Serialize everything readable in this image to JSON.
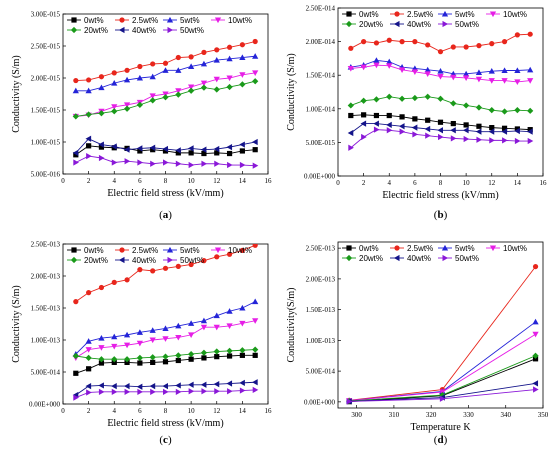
{
  "chart_data": [
    {
      "type": "line",
      "caption": "a",
      "xlabel": "Electric field stress (kV/mm)",
      "ylabel": "Conductivity (S/m)",
      "xlim": [
        0,
        16
      ],
      "xticks": [
        0,
        2,
        4,
        6,
        8,
        10,
        12,
        14,
        16
      ],
      "ylim": [
        5e-16,
        3e-15
      ],
      "yticks": [
        5e-16,
        1e-15,
        1.5e-15,
        2e-15,
        2.5e-15,
        3e-15
      ],
      "ytick_labels": [
        "5.00E-016",
        "1.00E-015",
        "1.50E-015",
        "2.00E-015",
        "2.50E-015",
        "3.00E-015"
      ],
      "legend": "top",
      "series": [
        {
          "name": "0wt%",
          "x": [
            1,
            2,
            3,
            4,
            5,
            6,
            7,
            8,
            9,
            10,
            11,
            12,
            13,
            14,
            15
          ],
          "values": [
            8e-16,
            9.4e-16,
            9.2e-16,
            9.1e-16,
            9e-16,
            8.6e-16,
            8.8e-16,
            8.6e-16,
            8.3e-16,
            8.3e-16,
            8.2e-16,
            8.3e-16,
            8.2e-16,
            8.6e-16,
            8.8e-16
          ]
        },
        {
          "name": "2.5wt%",
          "x": [
            1,
            2,
            3,
            4,
            5,
            6,
            7,
            8,
            9,
            10,
            11,
            12,
            13,
            14,
            15
          ],
          "values": [
            1.96e-15,
            1.97e-15,
            2.02e-15,
            2.08e-15,
            2.12e-15,
            2.18e-15,
            2.22e-15,
            2.23e-15,
            2.32e-15,
            2.33e-15,
            2.4e-15,
            2.44e-15,
            2.48e-15,
            2.52e-15,
            2.57e-15
          ]
        },
        {
          "name": "5wt%",
          "x": [
            1,
            2,
            3,
            4,
            5,
            6,
            7,
            8,
            9,
            10,
            11,
            12,
            13,
            14,
            15
          ],
          "values": [
            1.8e-15,
            1.8e-15,
            1.85e-15,
            1.92e-15,
            1.97e-15,
            2e-15,
            2.02e-15,
            2.12e-15,
            2.12e-15,
            2.18e-15,
            2.22e-15,
            2.28e-15,
            2.3e-15,
            2.32e-15,
            2.34e-15
          ]
        },
        {
          "name": "10wt%",
          "x": [
            1,
            2,
            3,
            4,
            5,
            6,
            7,
            8,
            9,
            10,
            11,
            12,
            13,
            14,
            15
          ],
          "values": [
            1.4e-15,
            1.42e-15,
            1.48e-15,
            1.55e-15,
            1.58e-15,
            1.62e-15,
            1.72e-15,
            1.75e-15,
            1.8e-15,
            1.86e-15,
            1.92e-15,
            1.98e-15,
            2e-15,
            2.05e-15,
            2.08e-15
          ]
        },
        {
          "name": "20wt%",
          "x": [
            1,
            2,
            3,
            4,
            5,
            6,
            7,
            8,
            9,
            10,
            11,
            12,
            13,
            14,
            15
          ],
          "values": [
            1.4e-15,
            1.43e-15,
            1.45e-15,
            1.48e-15,
            1.52e-15,
            1.58e-15,
            1.65e-15,
            1.7e-15,
            1.74e-15,
            1.8e-15,
            1.85e-15,
            1.82e-15,
            1.86e-15,
            1.9e-15,
            1.95e-15
          ]
        },
        {
          "name": "40wt%",
          "x": [
            1,
            2,
            3,
            4,
            5,
            6,
            7,
            8,
            9,
            10,
            11,
            12,
            13,
            14,
            15
          ],
          "values": [
            8.3e-16,
            1.05e-15,
            9.6e-16,
            9.3e-16,
            8.8e-16,
            9e-16,
            9.1e-16,
            8.9e-16,
            8.7e-16,
            9e-16,
            8.8e-16,
            8.9e-16,
            9.2e-16,
            9.6e-16,
            1e-15
          ]
        },
        {
          "name": "50wt%",
          "x": [
            1,
            2,
            3,
            4,
            5,
            6,
            7,
            8,
            9,
            10,
            11,
            12,
            13,
            14,
            15
          ],
          "values": [
            6.8e-16,
            7.8e-16,
            7.5e-16,
            6.8e-16,
            7e-16,
            6.8e-16,
            6.6e-16,
            6.8e-16,
            6.6e-16,
            6.4e-16,
            6.6e-16,
            6.6e-16,
            6.4e-16,
            6.4e-16,
            6.3e-16
          ]
        }
      ]
    },
    {
      "type": "line",
      "caption": "b",
      "xlabel": "Electric field stress (kV/mm)",
      "ylabel": "Conductivity (S/m)",
      "xlim": [
        0,
        16
      ],
      "xticks": [
        0,
        2,
        4,
        6,
        8,
        10,
        12,
        14,
        16
      ],
      "ylim": [
        0,
        2.5e-14
      ],
      "yticks": [
        0,
        5e-15,
        1e-14,
        1.5e-14,
        2e-14,
        2.5e-14
      ],
      "ytick_labels": [
        "0.00E+000",
        "5.00E-015",
        "1.00E-014",
        "1.50E-014",
        "2.00E-014",
        "2.50E-014"
      ],
      "legend": "top",
      "series": [
        {
          "name": "0wt%",
          "x": [
            1,
            2,
            3,
            4,
            5,
            6,
            7,
            8,
            9,
            10,
            11,
            12,
            13,
            14,
            15
          ],
          "values": [
            9e-15,
            9.1e-15,
            9e-15,
            9e-15,
            8.8e-15,
            8.5e-15,
            8.3e-15,
            8e-15,
            7.8e-15,
            7.6e-15,
            7.4e-15,
            7.2e-15,
            7.1e-15,
            7e-15,
            6.9e-15
          ]
        },
        {
          "name": "2.5wt%",
          "x": [
            1,
            2,
            3,
            4,
            5,
            6,
            7,
            8,
            9,
            10,
            11,
            12,
            13,
            14,
            15
          ],
          "values": [
            1.9e-14,
            2e-14,
            1.98e-14,
            2.02e-14,
            2e-14,
            2e-14,
            1.95e-14,
            1.85e-14,
            1.92e-14,
            1.92e-14,
            1.94e-14,
            1.97e-14,
            2e-14,
            2.1e-14,
            2.11e-14
          ]
        },
        {
          "name": "5wt%",
          "x": [
            1,
            2,
            3,
            4,
            5,
            6,
            7,
            8,
            9,
            10,
            11,
            12,
            13,
            14,
            15
          ],
          "values": [
            1.62e-14,
            1.65e-14,
            1.72e-14,
            1.7e-14,
            1.62e-14,
            1.6e-14,
            1.58e-14,
            1.56e-14,
            1.52e-14,
            1.52e-14,
            1.54e-14,
            1.56e-14,
            1.57e-14,
            1.57e-14,
            1.58e-14
          ]
        },
        {
          "name": "10wt%",
          "x": [
            1,
            2,
            3,
            4,
            5,
            6,
            7,
            8,
            9,
            10,
            11,
            12,
            13,
            14,
            15
          ],
          "values": [
            1.6e-14,
            1.62e-14,
            1.65e-14,
            1.64e-14,
            1.58e-14,
            1.55e-14,
            1.52e-14,
            1.48e-14,
            1.47e-14,
            1.46e-14,
            1.44e-14,
            1.42e-14,
            1.42e-14,
            1.4e-14,
            1.42e-14
          ]
        },
        {
          "name": "20wt%",
          "x": [
            1,
            2,
            3,
            4,
            5,
            6,
            7,
            8,
            9,
            10,
            11,
            12,
            13,
            14,
            15
          ],
          "values": [
            1.05e-14,
            1.12e-14,
            1.14e-14,
            1.18e-14,
            1.15e-14,
            1.16e-14,
            1.18e-14,
            1.15e-14,
            1.08e-14,
            1.05e-14,
            1.02e-14,
            9.8e-15,
            9.6e-15,
            9.8e-15,
            9.7e-15
          ]
        },
        {
          "name": "40wt%",
          "x": [
            1,
            2,
            3,
            4,
            5,
            6,
            7,
            8,
            9,
            10,
            11,
            12,
            13,
            14,
            15
          ],
          "values": [
            6.4e-15,
            7.8e-15,
            7.8e-15,
            7.6e-15,
            7.4e-15,
            7.2e-15,
            7e-15,
            6.8e-15,
            6.8e-15,
            6.8e-15,
            6.6e-15,
            6.6e-15,
            6.6e-15,
            6.7e-15,
            6.6e-15
          ]
        },
        {
          "name": "50wt%",
          "x": [
            1,
            2,
            3,
            4,
            5,
            6,
            7,
            8,
            9,
            10,
            11,
            12,
            13,
            14,
            15
          ],
          "values": [
            4.2e-15,
            5.8e-15,
            6.9e-15,
            6.8e-15,
            6.6e-15,
            6.2e-15,
            6e-15,
            5.8e-15,
            5.6e-15,
            5.5e-15,
            5.4e-15,
            5.3e-15,
            5.3e-15,
            5.2e-15,
            5.2e-15
          ]
        }
      ]
    },
    {
      "type": "line",
      "caption": "c",
      "xlabel": "Electric field stress (kV/mm)",
      "ylabel": "Conductivity (S/m)",
      "xlim": [
        0,
        16
      ],
      "xticks": [
        0,
        2,
        4,
        6,
        8,
        10,
        12,
        14,
        16
      ],
      "ylim": [
        0,
        2.5e-13
      ],
      "yticks": [
        0,
        5e-14,
        1e-13,
        1.5e-13,
        2e-13,
        2.5e-13
      ],
      "ytick_labels": [
        "0.00E+000",
        "5.00E-014",
        "1.00E-013",
        "1.50E-013",
        "2.00E-013",
        "2.50E-013"
      ],
      "legend": "top",
      "series": [
        {
          "name": "0wt%",
          "x": [
            1,
            2,
            3,
            4,
            5,
            6,
            7,
            8,
            9,
            10,
            11,
            12,
            13,
            14,
            15
          ],
          "values": [
            4.8e-14,
            5.5e-14,
            6.4e-14,
            6.5e-14,
            6.5e-14,
            6.4e-14,
            6.5e-14,
            6.6e-14,
            6.8e-14,
            7e-14,
            7.2e-14,
            7.4e-14,
            7.5e-14,
            7.6e-14,
            7.6e-14
          ]
        },
        {
          "name": "2.5wt%",
          "x": [
            1,
            2,
            3,
            4,
            5,
            6,
            7,
            8,
            9,
            10,
            11,
            12,
            13,
            14,
            15
          ],
          "values": [
            1.6e-13,
            1.74e-13,
            1.82e-13,
            1.9e-13,
            1.94e-13,
            2.1e-13,
            2.08e-13,
            2.12e-13,
            2.15e-13,
            2.18e-13,
            2.24e-13,
            2.3e-13,
            2.34e-13,
            2.4e-13,
            2.48e-13
          ]
        },
        {
          "name": "5wt%",
          "x": [
            1,
            2,
            3,
            4,
            5,
            6,
            7,
            8,
            9,
            10,
            11,
            12,
            13,
            14,
            15
          ],
          "values": [
            7.8e-14,
            9.8e-14,
            1.03e-13,
            1.05e-13,
            1.08e-13,
            1.12e-13,
            1.15e-13,
            1.18e-13,
            1.22e-13,
            1.26e-13,
            1.3e-13,
            1.38e-13,
            1.45e-13,
            1.5e-13,
            1.6e-13
          ]
        },
        {
          "name": "10wt%",
          "x": [
            1,
            2,
            3,
            4,
            5,
            6,
            7,
            8,
            9,
            10,
            11,
            12,
            13,
            14,
            15
          ],
          "values": [
            7.2e-14,
            8.5e-14,
            8.8e-14,
            9e-14,
            9.2e-14,
            9.5e-14,
            1e-13,
            1.02e-13,
            1.04e-13,
            1.08e-13,
            1.2e-13,
            1.2e-13,
            1.22e-13,
            1.26e-13,
            1.3e-13
          ]
        },
        {
          "name": "20wt%",
          "x": [
            1,
            2,
            3,
            4,
            5,
            6,
            7,
            8,
            9,
            10,
            11,
            12,
            13,
            14,
            15
          ],
          "values": [
            7.5e-14,
            7.2e-14,
            7e-14,
            7e-14,
            7e-14,
            7.2e-14,
            7.3e-14,
            7.4e-14,
            7.6e-14,
            7.8e-14,
            8e-14,
            8.2e-14,
            8.3e-14,
            8.4e-14,
            8.5e-14
          ]
        },
        {
          "name": "40wt%",
          "x": [
            1,
            2,
            3,
            4,
            5,
            6,
            7,
            8,
            9,
            10,
            11,
            12,
            13,
            14,
            15
          ],
          "values": [
            1.4e-14,
            2.8e-14,
            2.9e-14,
            2.8e-14,
            2.8e-14,
            2.7e-14,
            2.8e-14,
            2.8e-14,
            2.9e-14,
            3e-14,
            3e-14,
            3.1e-14,
            3.2e-14,
            3.3e-14,
            3.4e-14
          ]
        },
        {
          "name": "50wt%",
          "x": [
            1,
            2,
            3,
            4,
            5,
            6,
            7,
            8,
            9,
            10,
            11,
            12,
            13,
            14,
            15
          ],
          "values": [
            1e-14,
            1.8e-14,
            1.9e-14,
            1.9e-14,
            1.9e-14,
            1.9e-14,
            1.9e-14,
            1.9e-14,
            1.9e-14,
            2e-14,
            2e-14,
            2e-14,
            2e-14,
            2.1e-14,
            2.2e-14
          ]
        }
      ]
    },
    {
      "type": "line",
      "caption": "d",
      "xlabel": "Temperature K",
      "ylabel": "Conductivity(S/m)",
      "xlim": [
        295,
        350
      ],
      "xticks": [
        300,
        310,
        320,
        330,
        340,
        350
      ],
      "ylim": [
        -1e-14,
        2.6e-13
      ],
      "yticks": [
        0,
        5e-14,
        1e-13,
        1.5e-13,
        2e-13,
        2.5e-13
      ],
      "ytick_labels": [
        "0.00E+000",
        "5.00E-014",
        "1.00E-013",
        "1.50E-013",
        "2.00E-013",
        "2.50E-013"
      ],
      "legend": "top",
      "series": [
        {
          "name": "0wt%",
          "x": [
            298,
            323,
            348
          ],
          "values": [
            3e-16,
            1e-14,
            7e-14
          ]
        },
        {
          "name": "2.5wt%",
          "x": [
            298,
            323,
            348
          ],
          "values": [
            2.5e-15,
            2e-14,
            2.2e-13
          ]
        },
        {
          "name": "5wt%",
          "x": [
            298,
            323,
            348
          ],
          "values": [
            2e-15,
            1.7e-14,
            1.3e-13
          ]
        },
        {
          "name": "10wt%",
          "x": [
            298,
            323,
            348
          ],
          "values": [
            2e-15,
            1.6e-14,
            1.1e-13
          ]
        },
        {
          "name": "20wt%",
          "x": [
            298,
            323,
            348
          ],
          "values": [
            1.4e-15,
            1.1e-14,
            7.5e-14
          ]
        },
        {
          "name": "40wt%",
          "x": [
            298,
            323,
            348
          ],
          "values": [
            9e-16,
            7e-15,
            3e-14
          ]
        },
        {
          "name": "50wt%",
          "x": [
            298,
            323,
            348
          ],
          "values": [
            6e-16,
            5e-15,
            2e-14
          ]
        }
      ]
    }
  ],
  "series_style": [
    {
      "color": "#000000",
      "marker": "square"
    },
    {
      "color": "#e8261c",
      "marker": "circle"
    },
    {
      "color": "#2424d8",
      "marker": "triangle-up"
    },
    {
      "color": "#e61ee6",
      "marker": "triangle-down"
    },
    {
      "color": "#1a9a1a",
      "marker": "diamond"
    },
    {
      "color": "#14148a",
      "marker": "triangle-left"
    },
    {
      "color": "#8a18d8",
      "marker": "triangle-right"
    }
  ]
}
